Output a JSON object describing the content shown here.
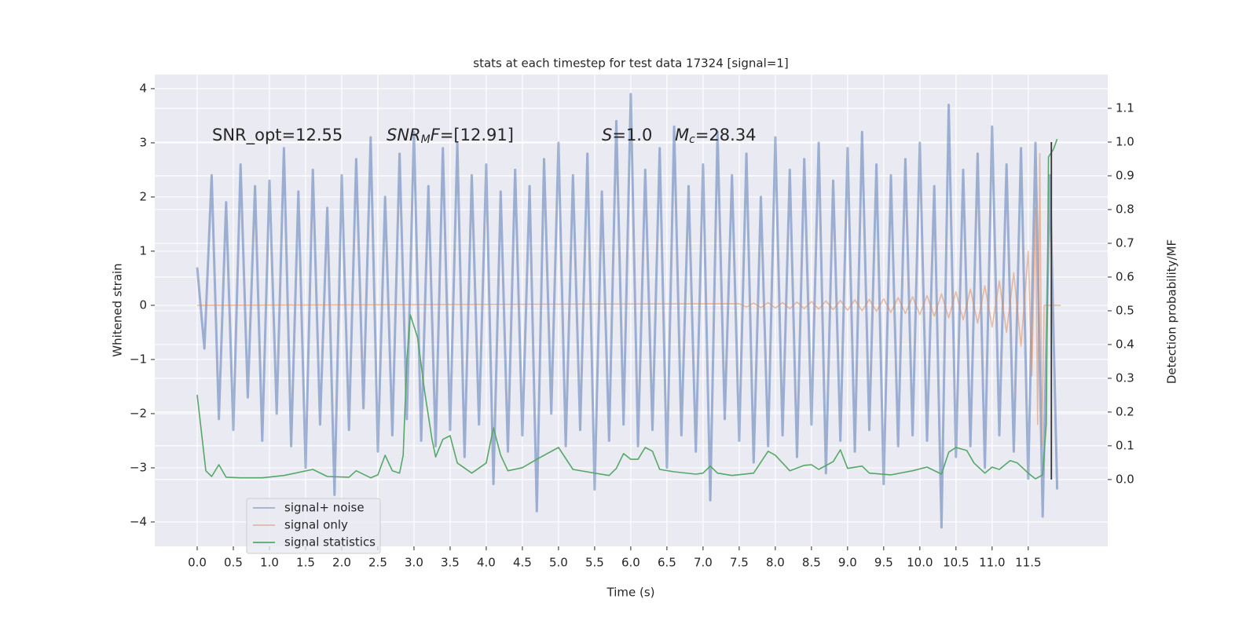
{
  "chart_data": {
    "type": "line",
    "title": "stats at each timestep for test data 17324 [signal=1]",
    "x_label": "Time (s)",
    "y_label": "Whitened strain",
    "y2_label": "Detection probability/MF",
    "xlim": [
      -0.587,
      12.6
    ],
    "ylim": [
      -4.45,
      4.26
    ],
    "y2lim": [
      -0.198,
      1.2
    ],
    "xticks": [
      {
        "value": 0,
        "label": "0.0"
      },
      0.5,
      {
        "value": 1,
        "label": "1.0"
      },
      1.5,
      {
        "value": 2,
        "label": "2.0"
      },
      2.5,
      {
        "value": 3,
        "label": "3.0"
      },
      3.5,
      {
        "value": 4,
        "label": "4.0"
      },
      4.5,
      {
        "value": 5,
        "label": "5.0"
      },
      5.5,
      {
        "value": 6,
        "label": "6.0"
      },
      6.5,
      {
        "value": 7,
        "label": "7.0"
      },
      7.5,
      {
        "value": 8,
        "label": "8.0"
      },
      8.5,
      {
        "value": 9,
        "label": "9.0"
      },
      9.5,
      {
        "value": 10,
        "label": "10.0"
      },
      10.5,
      {
        "value": 11,
        "label": "11.0"
      },
      11.5
    ],
    "yticks": [
      {
        "value": -4,
        "label": "−4"
      },
      {
        "value": -3,
        "label": "−3"
      },
      {
        "value": -2,
        "label": "−2"
      },
      {
        "value": -1,
        "label": "−1"
      },
      0,
      1,
      2,
      3,
      4
    ],
    "y2ticks": [
      {
        "value": 0,
        "label": "0.0"
      },
      0.1,
      0.2,
      0.3,
      0.4,
      0.5,
      0.6,
      0.7,
      0.8,
      0.9,
      {
        "value": 1,
        "label": "1.0"
      },
      1.1
    ],
    "grid": true,
    "legend": "lower left",
    "series": [
      {
        "name": "signal+ noise",
        "color": "#4c72b0",
        "x": [
          0.0,
          0.1,
          0.2,
          0.3,
          0.4,
          0.5,
          0.6,
          0.7,
          0.8,
          0.9,
          1.0,
          1.1,
          1.2,
          1.3,
          1.4,
          1.5,
          1.6,
          1.7,
          1.8,
          1.9,
          2.0,
          2.1,
          2.2,
          2.3,
          2.4,
          2.5,
          2.6,
          2.7,
          2.8,
          2.9,
          3.0,
          3.1,
          3.2,
          3.3,
          3.4,
          3.5,
          3.6,
          3.7,
          3.8,
          3.9,
          4.0,
          4.1,
          4.2,
          4.3,
          4.4,
          4.5,
          4.6,
          4.7,
          4.8,
          4.9,
          5.0,
          5.1,
          5.2,
          5.3,
          5.4,
          5.5,
          5.6,
          5.7,
          5.8,
          5.9,
          6.0,
          6.1,
          6.2,
          6.3,
          6.4,
          6.5,
          6.6,
          6.7,
          6.8,
          6.9,
          7.0,
          7.1,
          7.2,
          7.3,
          7.4,
          7.5,
          7.6,
          7.7,
          7.8,
          7.9,
          8.0,
          8.1,
          8.2,
          8.3,
          8.4,
          8.5,
          8.6,
          8.7,
          8.8,
          8.9,
          9.0,
          9.1,
          9.2,
          9.3,
          9.4,
          9.5,
          9.6,
          9.7,
          9.8,
          9.9,
          10.0,
          10.1,
          10.2,
          10.3,
          10.4,
          10.5,
          10.6,
          10.7,
          10.8,
          10.9,
          11.0,
          11.1,
          11.2,
          11.3,
          11.4,
          11.5,
          11.6,
          11.7,
          11.8,
          11.9
        ],
        "values": [
          0.7,
          -0.8,
          2.4,
          -2.1,
          1.9,
          -2.3,
          2.6,
          -1.7,
          2.2,
          -2.5,
          2.3,
          -2.0,
          2.9,
          -2.6,
          2.1,
          -3.0,
          2.5,
          -2.2,
          1.8,
          -3.5,
          2.4,
          -2.3,
          2.7,
          -1.9,
          3.1,
          -2.7,
          2.0,
          -2.4,
          2.8,
          -2.1,
          3.2,
          -2.5,
          2.2,
          -2.6,
          2.9,
          -2.3,
          3.0,
          -2.8,
          2.4,
          -2.2,
          2.6,
          -3.3,
          2.1,
          -2.7,
          2.5,
          -2.4,
          2.2,
          -3.8,
          2.7,
          -2.0,
          3.0,
          -2.6,
          2.4,
          -2.3,
          2.8,
          -3.4,
          2.1,
          -2.5,
          3.4,
          -2.2,
          3.9,
          -2.6,
          2.5,
          -2.3,
          2.9,
          -3.0,
          3.3,
          -2.4,
          2.2,
          -2.7,
          2.6,
          -3.6,
          3.2,
          -2.1,
          2.4,
          -2.5,
          2.8,
          -2.9,
          2.0,
          -2.6,
          3.1,
          -2.4,
          2.5,
          -2.8,
          2.7,
          -2.2,
          3.0,
          -3.1,
          2.3,
          -2.5,
          2.9,
          -2.7,
          3.2,
          -2.3,
          2.6,
          -3.3,
          2.4,
          -2.6,
          2.7,
          -2.4,
          3.0,
          -2.5,
          2.2,
          -4.1,
          3.7,
          -2.8,
          2.5,
          -2.6,
          2.8,
          -3.0,
          3.3,
          -2.4,
          2.6,
          -2.7,
          2.9,
          -3.2,
          3.0,
          -3.9,
          2.4,
          -3.4
        ]
      },
      {
        "name": "signal only",
        "color": "#dd8452",
        "x": [
          0.0,
          7.5,
          7.6,
          7.7,
          7.8,
          7.9,
          8.0,
          8.1,
          8.2,
          8.3,
          8.4,
          8.5,
          8.6,
          8.7,
          8.8,
          8.9,
          9.0,
          9.1,
          9.2,
          9.3,
          9.4,
          9.5,
          9.6,
          9.7,
          9.8,
          9.9,
          10.0,
          10.1,
          10.2,
          10.3,
          10.4,
          10.5,
          10.6,
          10.7,
          10.8,
          10.9,
          11.0,
          11.1,
          11.2,
          11.3,
          11.4,
          11.5,
          11.55,
          11.6,
          11.63,
          11.66,
          11.69,
          11.72,
          11.95
        ],
        "values": [
          0,
          0.03,
          -0.03,
          0.04,
          -0.04,
          0.05,
          -0.05,
          0.05,
          -0.06,
          0.06,
          -0.06,
          0.07,
          -0.07,
          0.08,
          -0.08,
          0.09,
          -0.09,
          0.1,
          -0.1,
          0.11,
          -0.11,
          0.12,
          -0.13,
          0.14,
          -0.15,
          0.16,
          -0.17,
          0.18,
          -0.2,
          0.21,
          -0.23,
          0.25,
          -0.27,
          0.3,
          -0.33,
          0.36,
          -0.4,
          0.45,
          -0.5,
          0.6,
          -0.75,
          1.0,
          -1.3,
          1.8,
          -2.2,
          2.8,
          -2.6,
          0,
          0
        ]
      },
      {
        "name": "signal statistics",
        "color": "#55a868",
        "axis": "y2",
        "x": [
          0,
          0.12,
          0.2,
          0.3,
          0.4,
          0.6,
          0.9,
          1.2,
          1.6,
          1.8,
          2.1,
          2.2,
          2.4,
          2.5,
          2.6,
          2.7,
          2.8,
          2.85,
          2.9,
          2.95,
          3.05,
          3.15,
          3.25,
          3.3,
          3.4,
          3.5,
          3.6,
          3.8,
          4.0,
          4.1,
          4.2,
          4.3,
          4.5,
          4.7,
          5.0,
          5.2,
          5.5,
          5.7,
          5.8,
          5.9,
          6.0,
          6.1,
          6.2,
          6.3,
          6.4,
          6.6,
          6.9,
          7.0,
          7.1,
          7.2,
          7.4,
          7.7,
          7.9,
          8.0,
          8.2,
          8.4,
          8.5,
          8.6,
          8.8,
          8.9,
          9.0,
          9.2,
          9.3,
          9.6,
          9.9,
          10.1,
          10.3,
          10.4,
          10.5,
          10.65,
          10.75,
          10.9,
          11.0,
          11.1,
          11.25,
          11.35,
          11.5,
          11.6,
          11.7,
          11.75,
          11.78,
          11.85,
          11.9
        ],
        "values": [
          0.251,
          0.026,
          0.009,
          0.044,
          0.007,
          0.005,
          0.005,
          0.012,
          0.03,
          0.009,
          0.007,
          0.026,
          0.005,
          0.014,
          0.072,
          0.026,
          0.019,
          0.072,
          0.351,
          0.488,
          0.421,
          0.258,
          0.119,
          0.067,
          0.119,
          0.13,
          0.049,
          0.019,
          0.049,
          0.153,
          0.072,
          0.026,
          0.035,
          0.06,
          0.095,
          0.03,
          0.019,
          0.012,
          0.033,
          0.077,
          0.06,
          0.06,
          0.095,
          0.084,
          0.03,
          0.023,
          0.016,
          0.019,
          0.04,
          0.019,
          0.012,
          0.019,
          0.084,
          0.072,
          0.026,
          0.042,
          0.044,
          0.03,
          0.053,
          0.088,
          0.033,
          0.04,
          0.019,
          0.014,
          0.026,
          0.037,
          0.016,
          0.081,
          0.095,
          0.086,
          0.049,
          0.019,
          0.037,
          0.03,
          0.056,
          0.049,
          0.019,
          0.002,
          0.014,
          0.165,
          0.956,
          0.979,
          1.009
        ]
      }
    ],
    "vlines": [
      11.82
    ],
    "annotations": [
      {
        "parts": [
          {
            "text": "SNR_opt=12.55"
          }
        ]
      },
      {
        "parts": [
          {
            "text": "SNR",
            "italic": true
          },
          {
            "text": "M",
            "italic": true,
            "sub": true
          },
          {
            "text": "F",
            "italic": true
          },
          {
            "text": "=[12.91]"
          }
        ]
      },
      {
        "parts": [
          {
            "text": "S",
            "italic": true
          },
          {
            "text": "=1.0"
          }
        ]
      },
      {
        "parts": [
          {
            "text": "M",
            "italic": true
          },
          {
            "text": "c",
            "italic": true,
            "sub": true
          },
          {
            "text": "=28.34"
          }
        ]
      }
    ]
  }
}
